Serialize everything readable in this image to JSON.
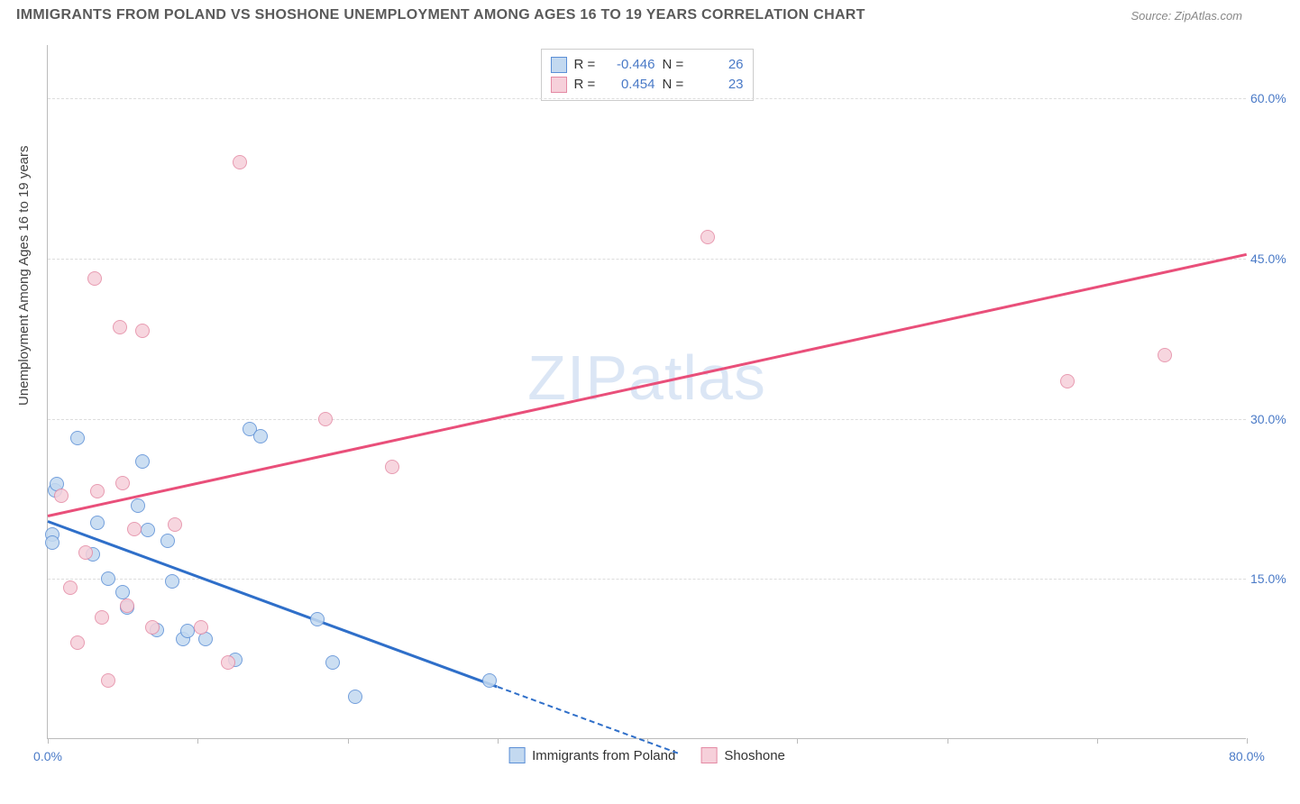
{
  "header": {
    "title": "IMMIGRANTS FROM POLAND VS SHOSHONE UNEMPLOYMENT AMONG AGES 16 TO 19 YEARS CORRELATION CHART",
    "source": "Source: ZipAtlas.com"
  },
  "chart": {
    "type": "scatter",
    "y_axis_title": "Unemployment Among Ages 16 to 19 years",
    "xlim": [
      0,
      80
    ],
    "ylim": [
      0,
      65
    ],
    "x_ticks": [
      0,
      10,
      20,
      30,
      40,
      50,
      60,
      70,
      80
    ],
    "x_tick_labels": {
      "0": "0.0%",
      "80": "80.0%"
    },
    "y_ticks": [
      15,
      30,
      45,
      60
    ],
    "y_tick_labels": [
      "15.0%",
      "30.0%",
      "45.0%",
      "60.0%"
    ],
    "grid_color": "#dddddd",
    "axis_color": "#bbbbbb",
    "background_color": "#ffffff",
    "point_radius": 8,
    "series": [
      {
        "name": "Immigrants from Poland",
        "fill": "#c3d9f0",
        "stroke": "#5b8fd6",
        "line_color": "#2f6fc9",
        "R": "-0.446",
        "N": "26",
        "trend": {
          "x1": 0,
          "y1": 20.5,
          "x2": 30,
          "y2": 5.0,
          "extend_x2": 42,
          "extend_y2": -1.2
        },
        "points": [
          [
            0.3,
            19.2
          ],
          [
            0.3,
            18.4
          ],
          [
            0.5,
            23.3
          ],
          [
            0.6,
            23.9
          ],
          [
            2.0,
            28.2
          ],
          [
            3.0,
            17.3
          ],
          [
            3.3,
            20.3
          ],
          [
            4.0,
            15.0
          ],
          [
            5.0,
            13.8
          ],
          [
            5.3,
            12.3
          ],
          [
            6.0,
            21.9
          ],
          [
            6.3,
            26.0
          ],
          [
            6.7,
            19.6
          ],
          [
            7.3,
            10.2
          ],
          [
            8.0,
            18.6
          ],
          [
            8.3,
            14.8
          ],
          [
            9.0,
            9.4
          ],
          [
            9.3,
            10.1
          ],
          [
            10.5,
            9.4
          ],
          [
            12.5,
            7.4
          ],
          [
            13.5,
            29.0
          ],
          [
            14.2,
            28.4
          ],
          [
            18.0,
            11.2
          ],
          [
            19.0,
            7.2
          ],
          [
            20.5,
            4.0
          ],
          [
            29.5,
            5.5
          ]
        ]
      },
      {
        "name": "Shoshone",
        "fill": "#f6d0da",
        "stroke": "#e48aa4",
        "line_color": "#e94f7a",
        "R": "0.454",
        "N": "23",
        "trend": {
          "x1": 0,
          "y1": 21.0,
          "x2": 80,
          "y2": 45.5
        },
        "points": [
          [
            0.9,
            22.8
          ],
          [
            1.5,
            14.2
          ],
          [
            2.0,
            9.0
          ],
          [
            2.5,
            17.5
          ],
          [
            3.1,
            43.1
          ],
          [
            3.3,
            23.2
          ],
          [
            3.6,
            11.4
          ],
          [
            4.0,
            5.5
          ],
          [
            4.8,
            38.6
          ],
          [
            5.0,
            24.0
          ],
          [
            5.3,
            12.5
          ],
          [
            5.8,
            19.7
          ],
          [
            6.3,
            38.2
          ],
          [
            7.0,
            10.5
          ],
          [
            8.5,
            20.1
          ],
          [
            10.2,
            10.5
          ],
          [
            12.0,
            7.2
          ],
          [
            12.8,
            54.0
          ],
          [
            18.5,
            30.0
          ],
          [
            23.0,
            25.5
          ],
          [
            44.0,
            47.0
          ],
          [
            68.0,
            33.5
          ],
          [
            74.5,
            36.0
          ]
        ]
      }
    ],
    "watermark": {
      "text1": "ZIP",
      "text2": "atlas"
    },
    "legend_bottom": [
      {
        "label": "Immigrants from Poland",
        "fill": "#c3d9f0",
        "stroke": "#5b8fd6"
      },
      {
        "label": "Shoshone",
        "fill": "#f6d0da",
        "stroke": "#e48aa4"
      }
    ]
  }
}
